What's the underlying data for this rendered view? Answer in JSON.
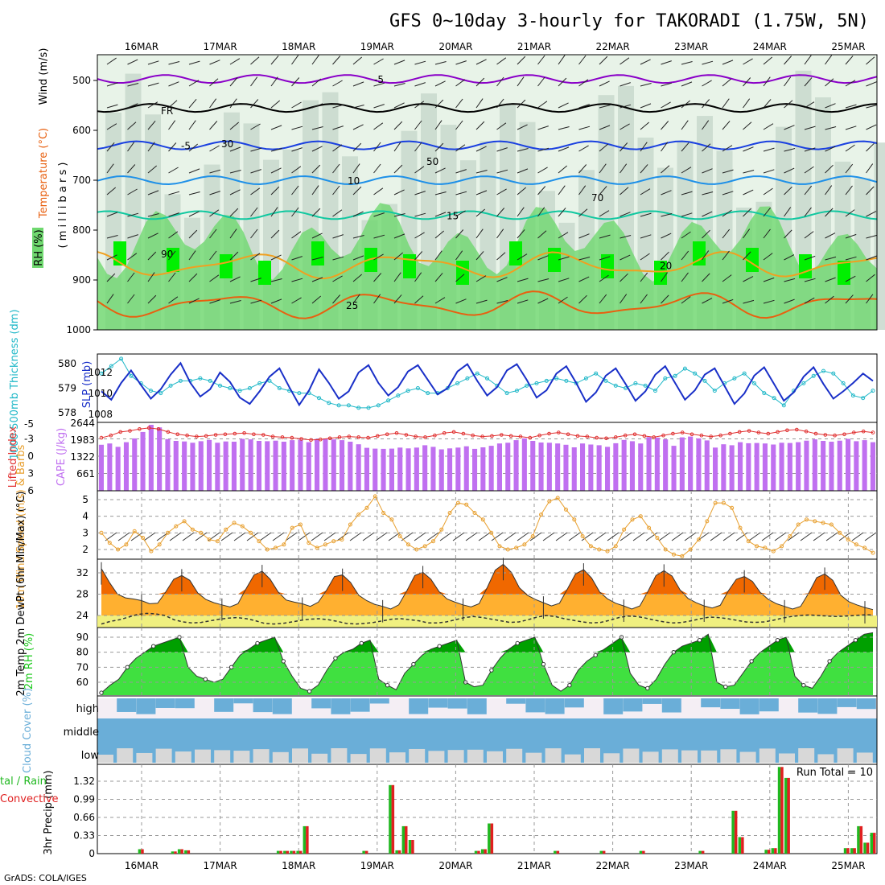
{
  "title": "GFS 0~10day 3-hourly for TAKORADI (1.75W, 5N)",
  "credit": "GrADS: COLA/IGES",
  "dates": [
    "16MAR",
    "17MAR",
    "18MAR",
    "19MAR",
    "20MAR",
    "21MAR",
    "22MAR",
    "23MAR",
    "24MAR",
    "25MAR"
  ],
  "colors": {
    "rh_light": "#e8f3e8",
    "rh_mid": "#c8d8cc",
    "rh_green": "#6fd86f",
    "rh_bright": "#00f000",
    "iso_purple": "#8a00c8",
    "iso_black": "#000000",
    "iso_blue": "#1a40e0",
    "iso_sky": "#1e90e8",
    "iso_teal": "#10c8a0",
    "iso_orange": "#f0a020",
    "iso_dark_orange": "#e86010",
    "iso_magenta": "#e0106a",
    "thickness": "#20b8c8",
    "slp": "#1a30c8",
    "cape": "#c070f0",
    "lifted": "#e03030",
    "wind10": "#e8a030",
    "temp_dark": "#f06800",
    "temp_light": "#ffb030",
    "dew_fill": "#f0f080",
    "rh2m": "#18c818",
    "cloud": "#6aaed8",
    "cloud_bg": "#f4eef4",
    "cloud_gray": "#d8d8d8",
    "rain": "#e02020",
    "total": "#20b820"
  },
  "chart_data": [
    {
      "panel": "upper-air",
      "type": "heatmap",
      "axis_labels_text": {
        "wind": "Wind (m/s)",
        "temp": "Temperature (°C)",
        "rh": "RH (%)",
        "y": "( m i l l i b a r s )"
      },
      "y_ticks": [
        500,
        600,
        700,
        800,
        900,
        1000
      ],
      "ylim": [
        450,
        1000
      ],
      "isotherm_labels": [
        {
          "label": "-5",
          "level": 497
        },
        {
          "label": "FR",
          "level": 560
        },
        {
          "label": "-5",
          "level": 630
        },
        {
          "label": "10",
          "level": 700
        },
        {
          "label": "15",
          "level": 770
        },
        {
          "label": "20",
          "level": 870
        },
        {
          "label": "25",
          "level": 950
        }
      ],
      "rh_contour_labels": [
        "30",
        "50",
        "70",
        "90"
      ]
    },
    {
      "panel": "thickness-slp",
      "type": "line",
      "thickness_label": "1000-500mb Thickness (dm)",
      "slp_label": "SLP (mb)",
      "thickness_ticks": [
        578,
        579,
        580
      ],
      "slp_ticks": [
        1008,
        1010,
        1012
      ],
      "series": [
        {
          "name": "thickness",
          "values": [
            579.6,
            579.9,
            580.2,
            579.5,
            579.2,
            578.9,
            578.8,
            579.1,
            579.3,
            579.3,
            579.4,
            579.3,
            579.1,
            579.0,
            578.9,
            579.0,
            579.2,
            579.3,
            579.0,
            578.9,
            578.8,
            578.8,
            578.6,
            578.4,
            578.3,
            578.3,
            578.2,
            578.2,
            578.3,
            578.5,
            578.7,
            578.9,
            579.0,
            578.8,
            578.8,
            579.0,
            579.2,
            579.4,
            579.6,
            579.4,
            579.1,
            578.8,
            578.9,
            579.1,
            579.2,
            579.3,
            579.4,
            579.3,
            579.2,
            579.4,
            579.6,
            579.3,
            579.1,
            579.0,
            579.2,
            579.1,
            578.9,
            579.4,
            579.5,
            579.8,
            579.6,
            579.3,
            578.9,
            579.2,
            579.4,
            579.6,
            579.2,
            578.8,
            578.6,
            578.3,
            578.9,
            579.2,
            579.5,
            579.7,
            579.6,
            579.2,
            578.7,
            578.6,
            578.9
          ]
        },
        {
          "name": "slp",
          "values": [
            1010.2,
            1009.4,
            1011.0,
            1012.2,
            1010.8,
            1009.5,
            1010.4,
            1011.8,
            1012.9,
            1011.0,
            1009.7,
            1010.4,
            1012.0,
            1011.1,
            1009.6,
            1009.0,
            1010.2,
            1011.6,
            1012.4,
            1010.6,
            1008.9,
            1010.3,
            1012.3,
            1011.0,
            1009.5,
            1010.2,
            1012.0,
            1012.7,
            1011.0,
            1009.8,
            1010.6,
            1012.1,
            1012.7,
            1011.3,
            1009.9,
            1010.5,
            1012.1,
            1012.8,
            1011.2,
            1009.8,
            1010.6,
            1012.2,
            1012.8,
            1011.3,
            1009.6,
            1010.3,
            1011.9,
            1012.6,
            1011.0,
            1009.2,
            1010.1,
            1011.7,
            1012.4,
            1010.9,
            1009.3,
            1010.2,
            1011.8,
            1012.6,
            1011.0,
            1009.4,
            1010.3,
            1011.8,
            1012.4,
            1010.7,
            1009.0,
            1010.0,
            1011.7,
            1012.5,
            1010.9,
            1009.3,
            1010.1,
            1011.6,
            1012.5,
            1010.9,
            1009.5,
            1010.2,
            1011.0,
            1011.9,
            1011.2
          ]
        }
      ]
    },
    {
      "panel": "lifted-cape",
      "type": "bar",
      "lifted_label": "Lifted Index",
      "cape_label": "CAPE (J/kg)",
      "lifted_ticks": [
        -3,
        0,
        3,
        6
      ],
      "lifted_tick_text": [
        "-3",
        "0",
        "3",
        "6"
      ],
      "lifted_top_tick": "-5",
      "cape_ticks": [
        661,
        1322,
        1983,
        2644
      ],
      "series": [
        {
          "name": "cape",
          "values": [
            1800,
            1850,
            1720,
            1900,
            2050,
            2300,
            2580,
            2480,
            2020,
            1950,
            1930,
            1880,
            1940,
            1990,
            1880,
            1930,
            1920,
            2030,
            2010,
            1950,
            1940,
            1960,
            1920,
            1980,
            2000,
            1900,
            2030,
            2040,
            2010,
            1980,
            1920,
            1820,
            1680,
            1650,
            1640,
            1650,
            1690,
            1660,
            1690,
            1780,
            1720,
            1620,
            1660,
            1690,
            1740,
            1640,
            1700,
            1760,
            1850,
            1880,
            1980,
            2050,
            1950,
            1890,
            1880,
            1850,
            1800,
            1700,
            1850,
            1810,
            1780,
            1720,
            1860,
            1990,
            1940,
            1850,
            2100,
            2080,
            2010,
            1760,
            2090,
            2120,
            2050,
            1970,
            1690,
            1820,
            1780,
            1900,
            1860,
            1870,
            1850,
            1810,
            1880,
            1870,
            1900,
            1960,
            2010,
            1950,
            1920,
            1960,
            2030,
            1940,
            1980,
            1900
          ]
        },
        {
          "name": "lifted_index",
          "values": [
            -3.2,
            -3.6,
            -4.2,
            -4.4,
            -4.7,
            -4.9,
            -4.7,
            -4.2,
            -3.8,
            -3.6,
            -3.4,
            -3.5,
            -3.7,
            -3.8,
            -3.9,
            -4.0,
            -3.8,
            -3.7,
            -3.4,
            -3.3,
            -3.2,
            -3.0,
            -2.8,
            -2.9,
            -3.1,
            -3.3,
            -3.4,
            -3.3,
            -3.2,
            -3.5,
            -3.8,
            -4.0,
            -3.7,
            -3.4,
            -3.3,
            -3.6,
            -4.0,
            -4.2,
            -3.9,
            -3.6,
            -3.4,
            -3.5,
            -3.7,
            -3.5,
            -3.4,
            -3.2,
            -3.6,
            -3.9,
            -4.1,
            -3.8,
            -3.5,
            -3.4,
            -3.2,
            -3.1,
            -3.3,
            -3.6,
            -3.8,
            -3.5,
            -3.3,
            -3.6,
            -3.9,
            -4.1,
            -3.8,
            -3.6,
            -3.4,
            -3.6,
            -3.9,
            -4.2,
            -4.4,
            -4.1,
            -3.9,
            -4.2,
            -4.5,
            -4.6,
            -4.3,
            -3.9,
            -3.7,
            -3.6,
            -3.8,
            -4.1,
            -4.3,
            -4.1
          ]
        }
      ]
    },
    {
      "panel": "wind10m",
      "type": "line",
      "axis_label": "10m Wind Speed (m/s) & Barbs",
      "ylim": [
        1.5,
        5.3
      ],
      "y_ticks": [
        2,
        3,
        4,
        5
      ],
      "series": [
        {
          "name": "speed",
          "values": [
            3.0,
            2.4,
            2.0,
            2.3,
            3.1,
            2.7,
            1.9,
            2.3,
            3.0,
            3.4,
            3.7,
            3.2,
            3.0,
            2.6,
            2.5,
            3.2,
            3.6,
            3.4,
            3.0,
            2.5,
            2.0,
            2.1,
            2.3,
            3.3,
            3.5,
            2.4,
            2.1,
            2.3,
            2.5,
            2.6,
            3.5,
            4.1,
            4.5,
            5.2,
            4.2,
            3.8,
            2.8,
            2.3,
            2.0,
            2.2,
            2.5,
            3.2,
            4.2,
            4.8,
            4.7,
            4.2,
            3.8,
            3.0,
            2.2,
            2.0,
            2.1,
            2.3,
            2.8,
            4.1,
            4.9,
            5.1,
            4.4,
            3.8,
            2.8,
            2.2,
            2.0,
            1.9,
            2.2,
            3.2,
            3.8,
            4.0,
            3.3,
            2.7,
            2.0,
            1.7,
            1.6,
            2.0,
            2.6,
            3.7,
            4.8,
            4.8,
            4.5,
            3.3,
            2.5,
            2.2,
            2.1,
            1.9,
            2.2,
            2.8,
            3.5,
            3.8,
            3.7,
            3.6,
            3.5,
            3.0,
            2.6,
            2.3,
            2.1,
            1.8
          ]
        }
      ]
    },
    {
      "panel": "temperature",
      "type": "area",
      "axis_label": "2m Temp 2m DewPt (6hr Min/Max) (°C)",
      "ylim": [
        21.5,
        34.5
      ],
      "y_ticks": [
        24,
        28,
        32
      ],
      "series": [
        {
          "name": "temp",
          "values": [
            32.8,
            30.2,
            28.0,
            27.3,
            27.1,
            26.8,
            26.2,
            26.3,
            28.4,
            30.8,
            31.5,
            30.6,
            28.2,
            27.0,
            26.4,
            26.0,
            25.6,
            26.2,
            29.0,
            31.6,
            32.3,
            30.8,
            28.4,
            26.9,
            26.5,
            26.2,
            25.7,
            26.5,
            28.7,
            31.3,
            31.6,
            30.2,
            27.8,
            26.8,
            26.1,
            25.7,
            25.2,
            26.0,
            28.6,
            31.5,
            32.1,
            30.8,
            28.5,
            27.1,
            26.5,
            26.0,
            25.6,
            26.2,
            29.2,
            32.5,
            33.6,
            32.1,
            29.2,
            27.8,
            27.0,
            26.4,
            25.8,
            26.3,
            29.0,
            31.8,
            32.6,
            31.0,
            28.4,
            27.1,
            26.3,
            25.8,
            25.2,
            25.8,
            28.5,
            31.5,
            32.4,
            31.4,
            28.8,
            27.2,
            26.4,
            25.8,
            25.4,
            25.9,
            28.6,
            30.8,
            31.3,
            30.4,
            28.3,
            27.0,
            26.2,
            25.7,
            25.2,
            25.7,
            28.2,
            31.1,
            31.8,
            30.6,
            27.8,
            26.6,
            26.0,
            25.5,
            25.1
          ]
        },
        {
          "name": "dewpoint",
          "values": [
            22.4,
            22.9,
            23.2,
            23.7,
            24.2,
            24.4,
            24.3,
            24.0,
            23.2,
            22.8,
            22.6,
            22.7,
            23.0,
            23.3,
            23.5,
            23.6,
            23.4,
            23.0,
            22.5,
            22.4,
            22.5,
            22.8,
            23.1,
            23.3,
            23.4,
            23.2,
            22.9,
            22.5,
            22.4,
            22.5,
            22.7,
            23.0,
            23.3,
            23.4,
            23.2,
            23.0,
            22.6,
            22.6,
            22.8,
            23.2,
            23.6,
            23.8,
            23.6,
            23.3,
            23.0,
            22.7,
            22.8,
            23.2,
            23.7,
            24.0,
            23.8,
            23.4,
            23.1,
            22.8,
            22.6,
            22.7,
            23.1,
            23.6,
            23.9,
            23.8,
            23.5,
            23.1,
            22.8,
            22.6,
            22.7,
            23.0,
            23.4,
            23.7,
            23.6,
            23.4,
            23.1,
            22.8,
            22.7,
            22.8,
            23.1,
            23.5,
            23.8,
            24.0,
            24.1,
            24.0,
            23.9,
            23.8,
            23.9,
            24.0,
            24.1,
            24.1
          ]
        }
      ]
    },
    {
      "panel": "rh2m",
      "type": "area",
      "axis_label": "2m RH (%)",
      "ylim": [
        52,
        94
      ],
      "y_ticks": [
        60,
        70,
        80,
        90
      ],
      "series": [
        {
          "name": "rh",
          "values": [
            53,
            58,
            62,
            70,
            76,
            80,
            84,
            86,
            88,
            90,
            70,
            64,
            62,
            60,
            62,
            70,
            78,
            82,
            86,
            88,
            90,
            74,
            64,
            56,
            54,
            58,
            68,
            76,
            80,
            82,
            86,
            88,
            62,
            58,
            55,
            66,
            72,
            78,
            82,
            84,
            86,
            88,
            60,
            57,
            58,
            68,
            76,
            82,
            86,
            88,
            90,
            72,
            58,
            54,
            58,
            68,
            74,
            78,
            82,
            86,
            90,
            66,
            58,
            56,
            62,
            72,
            80,
            84,
            86,
            88,
            92,
            60,
            57,
            58,
            66,
            74,
            80,
            84,
            88,
            90,
            64,
            58,
            56,
            64,
            74,
            80,
            84,
            88,
            92,
            93
          ]
        }
      ]
    },
    {
      "panel": "cloud",
      "type": "area",
      "axis_label": "Cloud Cover (%)",
      "level_labels": [
        "high",
        "middle",
        "low"
      ]
    },
    {
      "panel": "precip",
      "type": "bar",
      "axis_label": "3hr Precip (mm)",
      "legend_left": "tal / Rain",
      "legend_conv": "Convective",
      "run_total": "Run Total = 10",
      "ylim": [
        0,
        1.5
      ],
      "y_ticks": [
        0,
        0.33,
        0.66,
        0.99,
        1.32
      ],
      "y_tick_text": [
        "0",
        "0.33",
        "0.66",
        "0.99",
        "1.32"
      ],
      "series": [
        {
          "name": "total",
          "values": [
            0,
            0,
            0,
            0,
            0,
            0,
            0.08,
            0,
            0,
            0,
            0,
            0.04,
            0.08,
            0.06,
            0,
            0,
            0,
            0,
            0,
            0,
            0,
            0,
            0,
            0,
            0,
            0,
            0,
            0.05,
            0.05,
            0.05,
            0.05,
            0.5,
            0,
            0,
            0,
            0,
            0,
            0,
            0,
            0,
            0.05,
            0,
            0,
            0,
            1.25,
            0.06,
            0.5,
            0.25,
            0,
            0,
            0,
            0,
            0,
            0,
            0,
            0,
            0,
            0.05,
            0.08,
            0.55,
            0,
            0,
            0,
            0,
            0,
            0,
            0,
            0,
            0,
            0.05,
            0,
            0,
            0,
            0,
            0,
            0,
            0.05,
            0,
            0,
            0,
            0,
            0,
            0.05,
            0,
            0,
            0,
            0,
            0,
            0,
            0,
            0,
            0.05,
            0,
            0,
            0,
            0,
            0.78,
            0.3,
            0,
            0,
            0,
            0.07,
            0.1,
            1.58,
            1.38,
            0,
            0,
            0,
            0,
            0,
            0,
            0,
            0,
            0.1,
            0.1,
            0.5,
            0.2,
            0.38
          ]
        }
      ]
    }
  ]
}
